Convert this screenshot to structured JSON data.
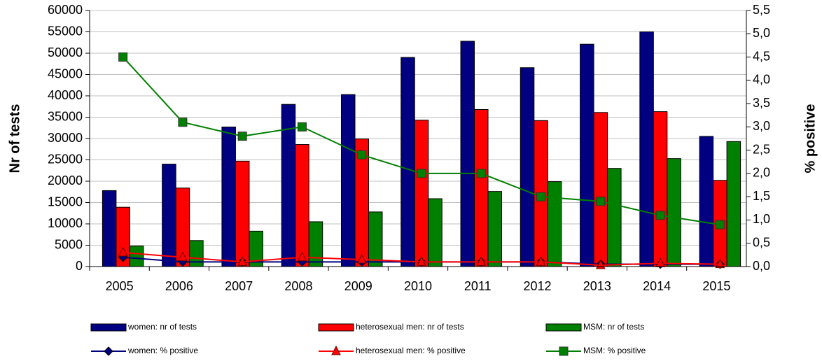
{
  "chart_data": {
    "type": "bar",
    "categories": [
      "2005",
      "2006",
      "2007",
      "2008",
      "2009",
      "2010",
      "2011",
      "2012",
      "2013",
      "2014",
      "2015"
    ],
    "y_label": "Nr of tests",
    "y2_label": "% positive",
    "ylim": [
      0,
      60000
    ],
    "yticks": [
      0,
      5000,
      10000,
      15000,
      20000,
      25000,
      30000,
      35000,
      40000,
      45000,
      50000,
      55000,
      60000
    ],
    "y2lim": [
      0,
      5.5
    ],
    "y2ticks": [
      {
        "value": 0,
        "label": "0,0"
      },
      {
        "value": 0.5,
        "label": "0,5"
      },
      {
        "value": 1,
        "label": "1,0"
      },
      {
        "value": 1.5,
        "label": "1,5"
      },
      {
        "value": 2,
        "label": "2,0"
      },
      {
        "value": 2.5,
        "label": "2,5"
      },
      {
        "value": 3,
        "label": "3,0"
      },
      {
        "value": 3.5,
        "label": "3,5"
      },
      {
        "value": 4,
        "label": "4,0"
      },
      {
        "value": 4.5,
        "label": "4,5"
      },
      {
        "value": 5,
        "label": "5,0"
      },
      {
        "value": 5.5,
        "label": "5,5"
      }
    ],
    "grid": true,
    "series": [
      {
        "name": "women: nr of tests",
        "type": "bar",
        "color": "#000080",
        "values": [
          17800,
          24000,
          32700,
          38000,
          40300,
          49000,
          52800,
          46600,
          52100,
          55000,
          30500
        ]
      },
      {
        "name": "heterosexual men: nr of tests",
        "type": "bar",
        "color": "#ff0000",
        "values": [
          13900,
          18400,
          24700,
          28600,
          29900,
          34300,
          36800,
          34200,
          36100,
          36300,
          20200
        ]
      },
      {
        "name": "MSM: nr of tests",
        "type": "bar",
        "color": "#008000",
        "values": [
          4800,
          6100,
          8300,
          10500,
          12800,
          15900,
          17600,
          19900,
          23000,
          25300,
          29300
        ]
      },
      {
        "name": "women: % positive",
        "type": "line",
        "axis": "y2",
        "color": "#000080",
        "marker": "diamond",
        "values": [
          0.2,
          0.1,
          0.1,
          0.1,
          0.1,
          0.1,
          0.1,
          0.1,
          0.05,
          0.05,
          0.05
        ]
      },
      {
        "name": "heterosexual men: % positive",
        "type": "line",
        "axis": "y2",
        "color": "#ff0000",
        "marker": "triangle",
        "values": [
          0.3,
          0.2,
          0.1,
          0.2,
          0.15,
          0.1,
          0.1,
          0.1,
          0.03,
          0.07,
          0.05
        ]
      },
      {
        "name": "MSM: % positive",
        "type": "line",
        "axis": "y2",
        "color": "#008000",
        "marker": "square",
        "values": [
          4.5,
          3.1,
          2.8,
          3.0,
          2.4,
          2.0,
          2.0,
          1.5,
          1.4,
          1.1,
          0.9
        ]
      }
    ]
  }
}
